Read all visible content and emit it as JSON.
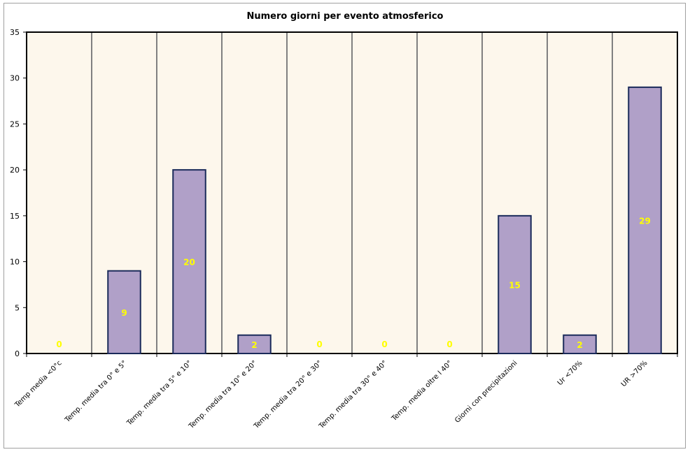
{
  "chart_data": {
    "type": "bar",
    "title": "Numero giorni per evento atmosferico",
    "xlabel": "",
    "ylabel": "",
    "categories": [
      "Temp media <0°c",
      "Temp. media tra 0° e 5°",
      "Temp. media tra 5° e 10°",
      "Temp. media tra 10° e 20°",
      "Temp. media tra 20° e 30°",
      "Temp. media tra 30° e 40°",
      "Temp. media oltre I 40°",
      "Giorni con precipitazioni",
      "Ur <70%",
      "UR >70%"
    ],
    "values": [
      0,
      9,
      20,
      2,
      0,
      0,
      0,
      15,
      2,
      29
    ],
    "ylim": [
      0,
      35
    ],
    "yticks": [
      0,
      5,
      10,
      15,
      20,
      25,
      30,
      35
    ],
    "grid": "vertical",
    "legend": "none",
    "colors": {
      "bar_fill": "#b0a0c8",
      "bar_stroke": "#1a2a5a",
      "plot_bg": "#fdf7ec",
      "grid": "#808080",
      "data_label": "#ffff00"
    }
  }
}
